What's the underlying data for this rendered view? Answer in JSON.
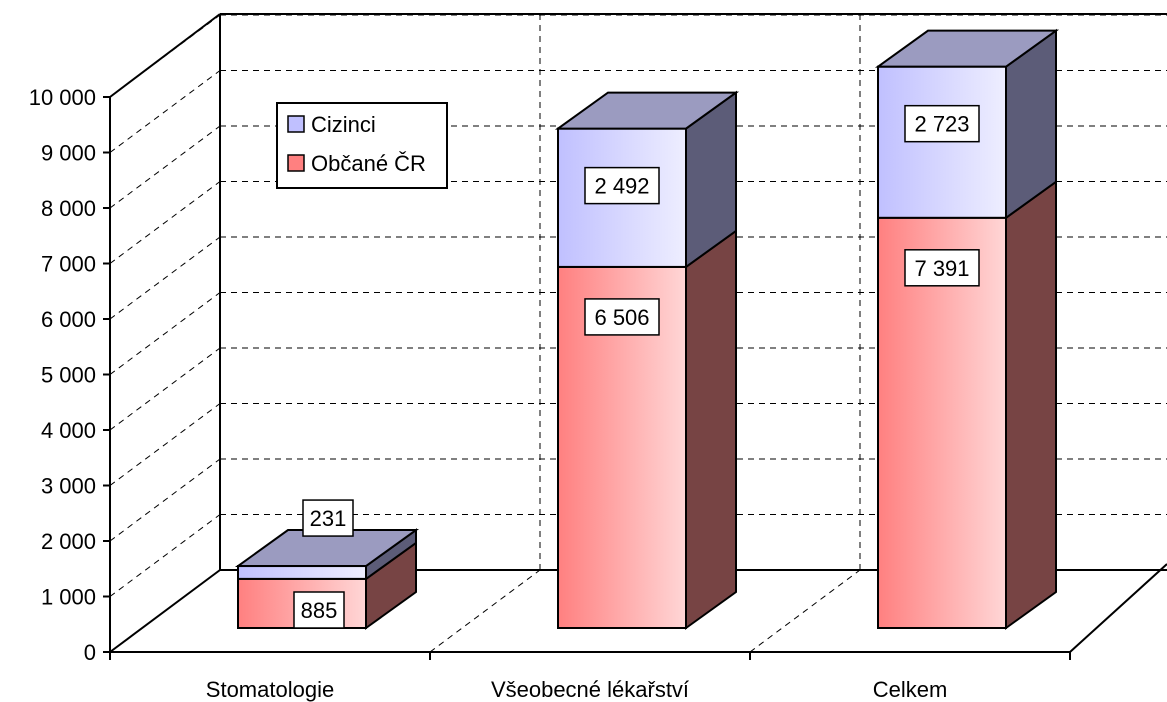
{
  "chart_data": {
    "type": "bar",
    "stacked": true,
    "three_d": true,
    "categories": [
      "Stomatologie",
      "Všeobecné lékařství",
      "Celkem"
    ],
    "series": [
      {
        "name": "Občané ČR",
        "values": [
          885,
          6506,
          7391
        ],
        "color": "#ff8080"
      },
      {
        "name": "Cizinci",
        "values": [
          231,
          2492,
          2723
        ],
        "color": "#c0c0ff"
      }
    ],
    "ylim": [
      0,
      10000
    ],
    "yticks": [
      "0",
      "1 000",
      "2 000",
      "3 000",
      "4 000",
      "5 000",
      "6 000",
      "7 000",
      "8 000",
      "9 000",
      "10 000"
    ],
    "data_labels": [
      [
        "885",
        "6 506",
        "7 391"
      ],
      [
        "231",
        "2 492",
        "2 723"
      ]
    ],
    "grid": true,
    "legend_position": "top-left",
    "title": "",
    "xlabel": "",
    "ylabel": ""
  }
}
